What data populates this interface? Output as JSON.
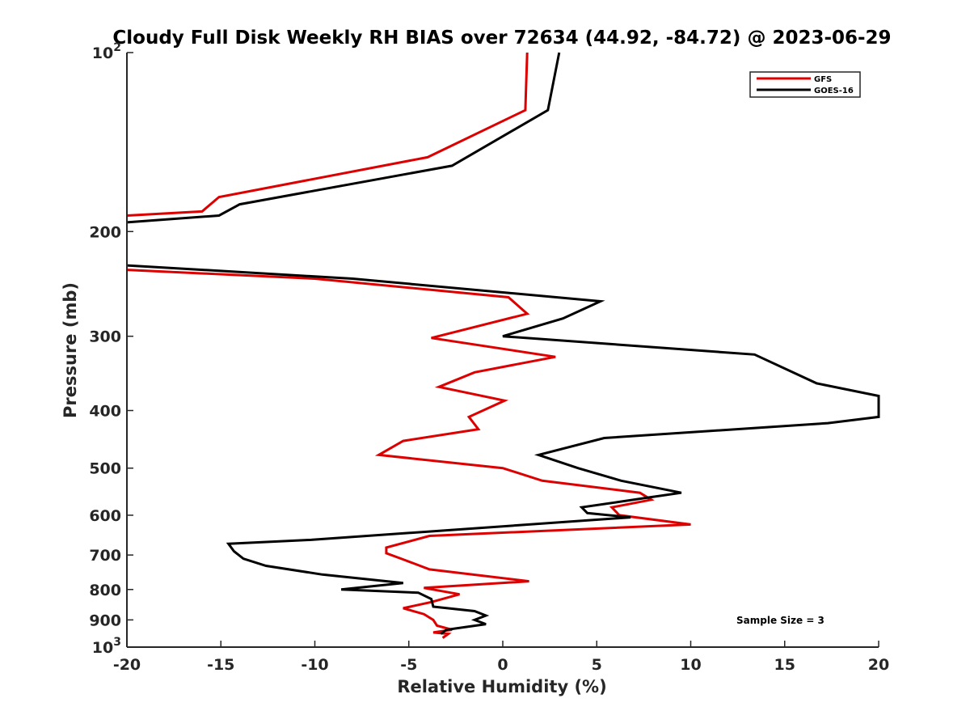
{
  "chart_data": {
    "type": "line",
    "title": "Cloudy Full Disk Weekly RH BIAS over 72634 (44.92, -84.72) @ 2023-06-29",
    "xlabel": "Relative Humidity (%)",
    "ylabel": "Pressure (mb)",
    "xlim": [
      -20,
      20
    ],
    "ylim": [
      100,
      1000
    ],
    "y_scale": "log",
    "y_reversed": true,
    "grid": false,
    "legend_position": "top-right",
    "x_ticks": [
      "-20",
      "-15",
      "-10",
      "-5",
      "0",
      "5",
      "10",
      "15",
      "20"
    ],
    "x_tick_values": [
      -20,
      -15,
      -10,
      -5,
      0,
      5,
      10,
      15,
      20
    ],
    "y_ticks": [
      {
        "value": 100,
        "base": "10",
        "exp": "2"
      },
      {
        "value": 200,
        "label": "200"
      },
      {
        "value": 300,
        "label": "300"
      },
      {
        "value": 400,
        "label": "400"
      },
      {
        "value": 500,
        "label": "500"
      },
      {
        "value": 600,
        "label": "600"
      },
      {
        "value": 700,
        "label": "700"
      },
      {
        "value": 800,
        "label": "800"
      },
      {
        "value": 900,
        "label": "900"
      },
      {
        "value": 1000,
        "base": "10",
        "exp": "3"
      }
    ],
    "annotation": "Sample Size = 3",
    "series": [
      {
        "name": "GFS",
        "color": "#dd0000",
        "segments": [
          [
            [
              1.3,
              100
            ],
            [
              1.2,
              125
            ],
            [
              -4.0,
              150
            ],
            [
              -15.1,
              175
            ],
            [
              -16.0,
              185
            ],
            [
              -20.0,
              188
            ]
          ],
          [
            [
              -20.0,
              232
            ],
            [
              -10.0,
              240
            ],
            [
              0.3,
              258
            ],
            [
              1.3,
              275
            ],
            [
              -3.8,
              302
            ],
            [
              2.8,
              325
            ],
            [
              -1.5,
              345
            ],
            [
              -3.4,
              365
            ],
            [
              0.1,
              385
            ],
            [
              -1.8,
              410
            ],
            [
              -1.3,
              430
            ],
            [
              -5.3,
              450
            ],
            [
              -6.6,
              475
            ],
            [
              0.0,
              500
            ],
            [
              2.1,
              525
            ],
            [
              7.3,
              550
            ],
            [
              7.9,
              565
            ],
            [
              5.8,
              582
            ],
            [
              6.2,
              600
            ],
            [
              10.0,
              622
            ],
            [
              -3.9,
              650
            ],
            [
              -6.2,
              680
            ],
            [
              -6.2,
              695
            ],
            [
              -5.3,
              712
            ],
            [
              -3.9,
              740
            ],
            [
              1.4,
              775
            ],
            [
              -4.2,
              795
            ],
            [
              -2.3,
              815
            ],
            [
              -3.8,
              840
            ],
            [
              -5.3,
              860
            ],
            [
              -4.2,
              880
            ],
            [
              -3.7,
              900
            ],
            [
              -3.5,
              920
            ],
            [
              -2.7,
              935
            ],
            [
              -3.7,
              945
            ],
            [
              -2.9,
              950
            ],
            [
              -3.2,
              965
            ]
          ]
        ]
      },
      {
        "name": "GOES-16",
        "color": "#000000",
        "segments": [
          [
            [
              3.0,
              100
            ],
            [
              2.4,
              125
            ],
            [
              -2.7,
              155
            ],
            [
              -14.0,
              180
            ],
            [
              -15.1,
              188
            ],
            [
              -20.0,
              193
            ]
          ],
          [
            [
              -20.0,
              228
            ],
            [
              -8.0,
              240
            ],
            [
              5.2,
              262
            ],
            [
              3.2,
              280
            ],
            [
              0.0,
              300
            ],
            [
              13.4,
              322
            ],
            [
              16.7,
              360
            ],
            [
              20.0,
              378
            ],
            [
              20.0,
              410
            ],
            [
              17.3,
              420
            ],
            [
              5.4,
              445
            ],
            [
              1.9,
              475
            ],
            [
              4.0,
              500
            ],
            [
              6.3,
              525
            ],
            [
              9.5,
              550
            ],
            [
              7.8,
              560
            ],
            [
              4.2,
              582
            ],
            [
              4.5,
              595
            ],
            [
              6.8,
              605
            ],
            [
              -10.2,
              660
            ],
            [
              -14.6,
              670
            ],
            [
              -14.3,
              690
            ],
            [
              -13.8,
              710
            ],
            [
              -12.6,
              730
            ],
            [
              -9.6,
              755
            ],
            [
              -5.3,
              780
            ],
            [
              -8.6,
              800
            ],
            [
              -4.5,
              810
            ],
            [
              -3.8,
              830
            ],
            [
              -3.7,
              855
            ],
            [
              -1.5,
              870
            ],
            [
              -0.9,
              885
            ],
            [
              -1.5,
              900
            ],
            [
              -0.9,
              915
            ],
            [
              -3.0,
              935
            ],
            [
              -3.3,
              950
            ]
          ]
        ]
      }
    ]
  }
}
